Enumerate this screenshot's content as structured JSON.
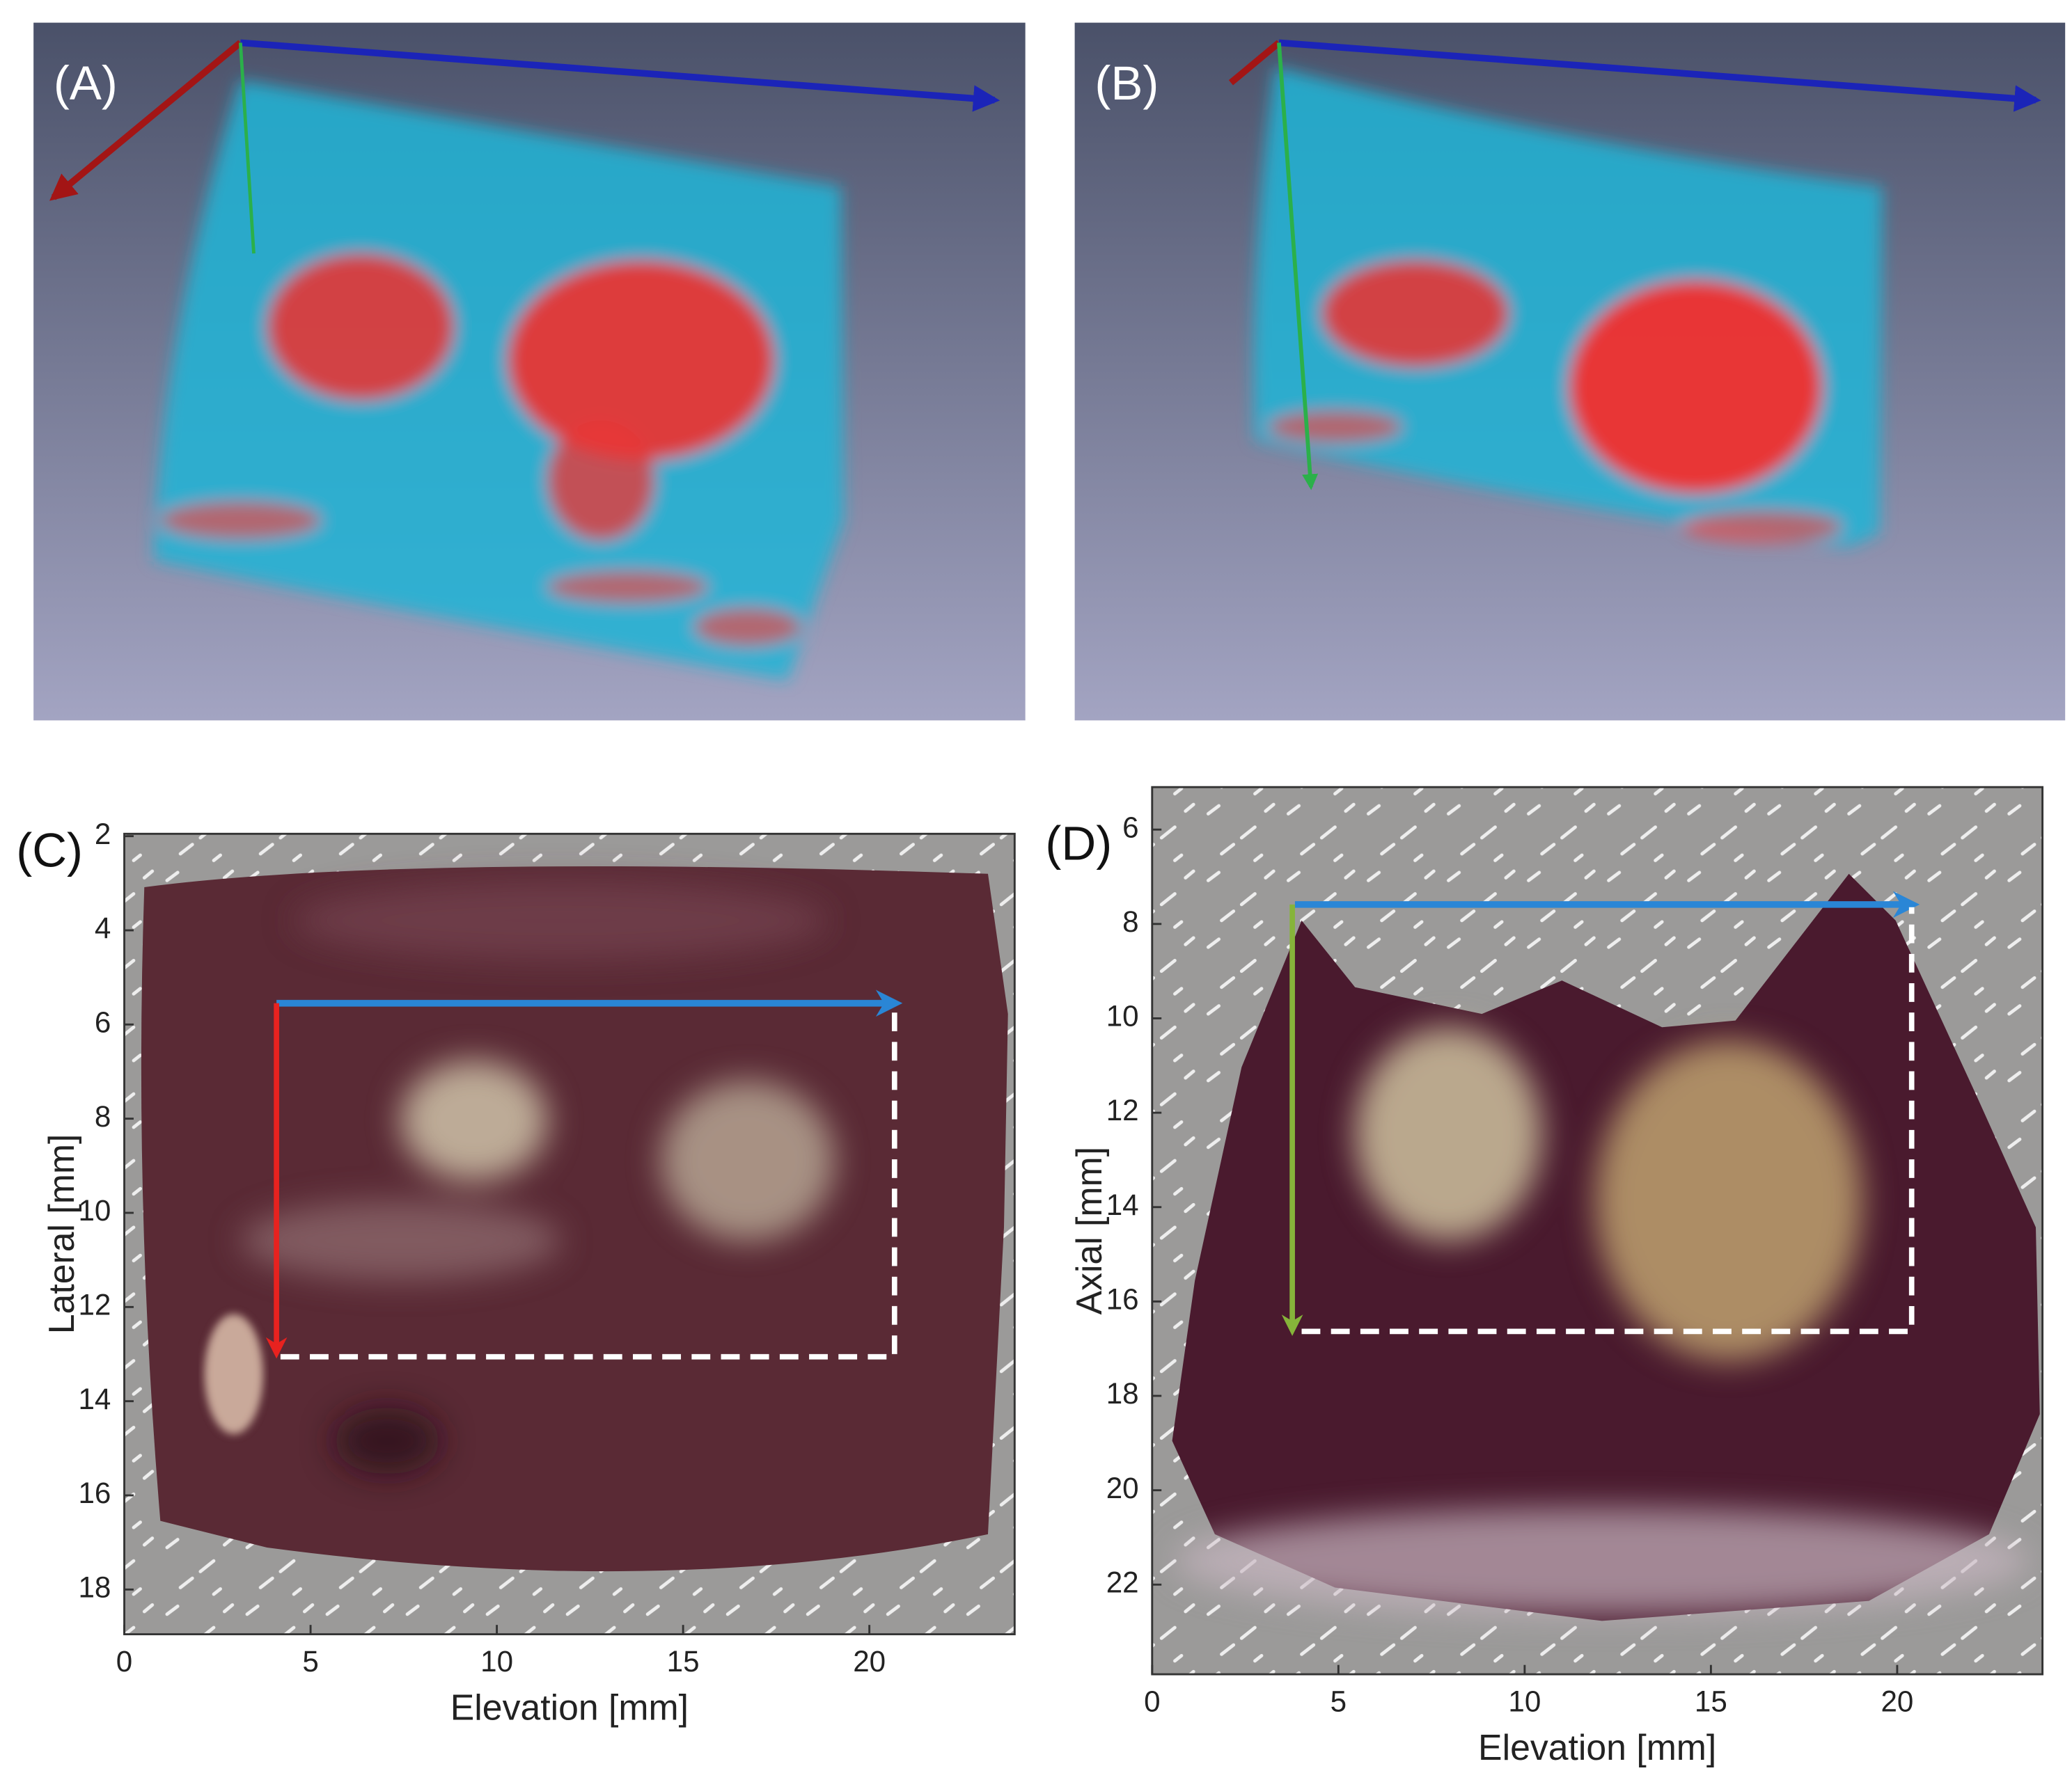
{
  "panels": [
    {
      "label": "(A)"
    },
    {
      "label": "(B)"
    },
    {
      "label": "(C)",
      "xlabel": "Elevation [mm]",
      "ylabel": "Lateral [mm]",
      "xlim": [
        0,
        23.9
      ],
      "ylim": [
        1.95,
        18.95
      ],
      "xticks": [
        0,
        5,
        10,
        15,
        20
      ],
      "yticks": [
        2,
        4,
        6,
        8,
        10,
        12,
        14,
        16,
        18
      ]
    },
    {
      "label": "(D)",
      "xlabel": "Elevation [mm]",
      "ylabel": "Axial [mm]",
      "xlim": [
        0,
        23.9
      ],
      "ylim": [
        5.1,
        23.9
      ],
      "xticks": [
        0,
        5,
        10,
        15,
        20
      ],
      "yticks": [
        6,
        8,
        10,
        12,
        14,
        16,
        18,
        20,
        22
      ]
    }
  ]
}
